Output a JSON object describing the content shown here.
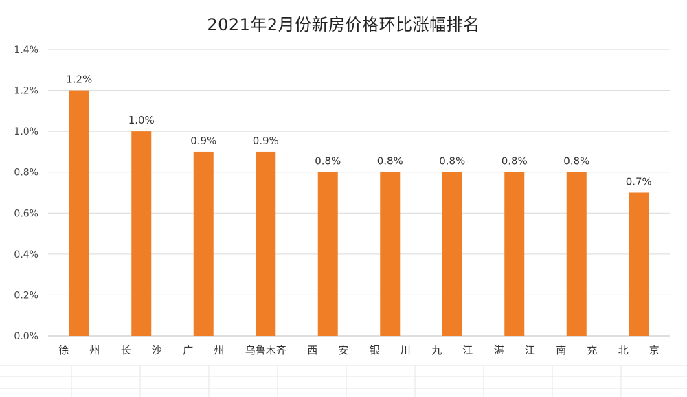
{
  "chart_data": {
    "type": "bar",
    "title": "2021年2月份新房价格环比涨幅排名",
    "categories": [
      "徐　　州",
      "长　　沙",
      "广　　州",
      "乌鲁木齐",
      "西　　安",
      "银　　川",
      "九　　江",
      "湛　　江",
      "南　　充",
      "北　　京"
    ],
    "values": [
      1.2,
      1.0,
      0.9,
      0.9,
      0.8,
      0.8,
      0.8,
      0.8,
      0.8,
      0.7
    ],
    "data_labels": [
      "1.2%",
      "1.0%",
      "0.9%",
      "0.9%",
      "0.8%",
      "0.8%",
      "0.8%",
      "0.8%",
      "0.8%",
      "0.7%"
    ],
    "yticks": [
      0,
      0.2,
      0.4,
      0.6,
      0.8,
      1.0,
      1.2,
      1.4
    ],
    "ytick_labels": [
      "0.0%",
      "0.2%",
      "0.4%",
      "0.6%",
      "0.8%",
      "1.0%",
      "1.2%",
      "1.4%"
    ],
    "ylim": [
      0,
      1.4
    ],
    "xlabel": "",
    "ylabel": "",
    "grid": true,
    "legend": "none",
    "bar_color": "#F07E26",
    "grid_color": "#d9d9d9"
  }
}
